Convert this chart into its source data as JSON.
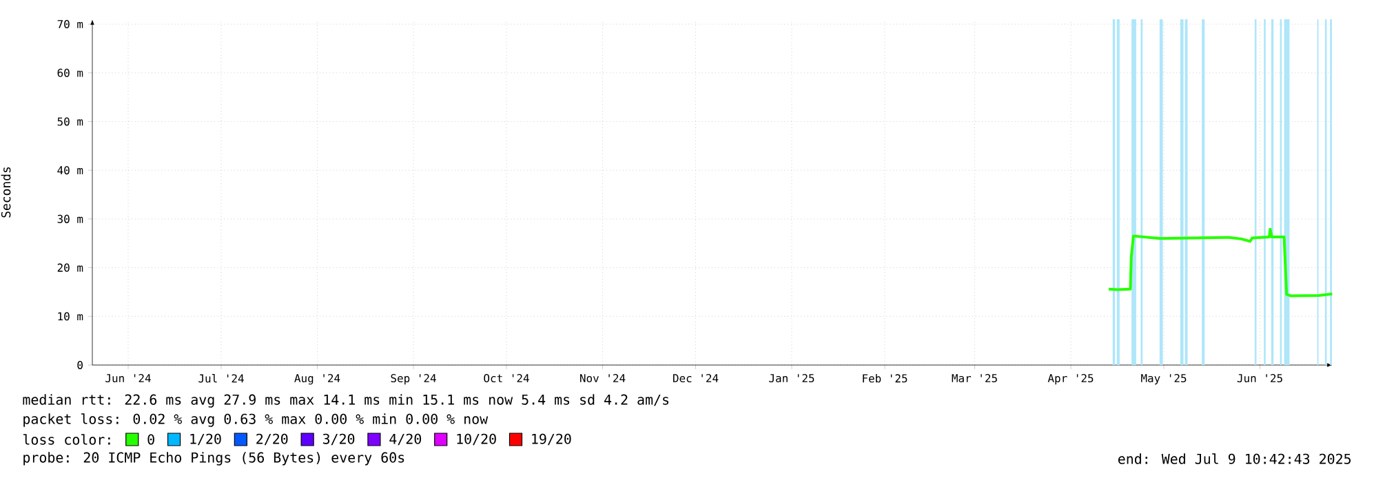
{
  "chart_data": {
    "type": "line",
    "ylabel": "Seconds",
    "legend_title": "loss color:",
    "legend": "bottom",
    "grid": true,
    "xlim": [
      "2024-06-04T10:42",
      "2025-07-09T10:42"
    ],
    "xticks": [
      {
        "value": "2024-06-16",
        "label": "Jun '24"
      },
      {
        "value": "2024-07-16",
        "label": "Jul '24"
      },
      {
        "value": "2024-08-16",
        "label": "Aug '24"
      },
      {
        "value": "2024-09-16",
        "label": "Sep '24"
      },
      {
        "value": "2024-10-16",
        "label": "Oct '24"
      },
      {
        "value": "2024-11-16",
        "label": "Nov '24"
      },
      {
        "value": "2024-12-16",
        "label": "Dec '24"
      },
      {
        "value": "2025-01-16",
        "label": "Jan '25"
      },
      {
        "value": "2025-02-15",
        "label": "Feb '25"
      },
      {
        "value": "2025-03-16",
        "label": "Mar '25"
      },
      {
        "value": "2025-04-16",
        "label": "Apr '25"
      },
      {
        "value": "2025-05-16",
        "label": "May '25"
      },
      {
        "value": "2025-06-16",
        "label": "Jun '25"
      }
    ],
    "ylim": [
      0,
      71
    ],
    "yticks": [
      0,
      {
        "value": 10,
        "label": "10 m"
      },
      {
        "value": 20,
        "label": "20 m"
      },
      {
        "value": 30,
        "label": "30 m"
      },
      {
        "value": 40,
        "label": "40 m"
      },
      {
        "value": 50,
        "label": "50 m"
      },
      {
        "value": 60,
        "label": "60 m"
      },
      {
        "value": 70,
        "label": "70 m"
      }
    ],
    "x": [
      "2025-04-28T05:00",
      "2025-05-01",
      "2025-05-05T05:00",
      "2025-05-05T12:00",
      "2025-05-06T05:00",
      "2025-05-14T19:00",
      "2025-06-06",
      "2025-06-10",
      "2025-06-12T19:00",
      "2025-06-13T12:00",
      "2025-06-19",
      "2025-06-19T07:00",
      "2025-06-19T19:00",
      "2025-06-23T19:00",
      "2025-06-24T14:00",
      "2025-06-26",
      "2025-07-05",
      "2025-07-09T07:00"
    ],
    "series": [
      {
        "name": "0",
        "color": "#26ff00",
        "values": [
          15.6,
          15.5,
          15.6,
          22.2,
          26.5,
          26.0,
          26.2,
          25.9,
          25.4,
          26.1,
          26.3,
          27.9,
          26.3,
          26.3,
          14.5,
          14.2,
          14.3,
          14.6
        ]
      },
      {
        "name": "1/20",
        "color": "#00b8ff",
        "values": [
          null,
          null,
          null,
          null,
          null,
          null,
          null,
          null,
          null,
          null,
          null,
          null,
          null,
          null,
          null,
          null,
          null,
          null
        ]
      },
      {
        "name": "2/20",
        "color": "#0059ff",
        "values": [
          null,
          null,
          null,
          null,
          null,
          null,
          null,
          null,
          null,
          null,
          null,
          null,
          null,
          null,
          null,
          null,
          null,
          null
        ]
      },
      {
        "name": "3/20",
        "color": "#5e00ff",
        "values": [
          null,
          null,
          null,
          null,
          null,
          null,
          null,
          null,
          null,
          null,
          null,
          null,
          null,
          null,
          null,
          null,
          null,
          null
        ]
      },
      {
        "name": "4/20",
        "color": "#7e00ff",
        "values": [
          null,
          null,
          null,
          null,
          null,
          null,
          null,
          null,
          null,
          null,
          null,
          null,
          null,
          null,
          null,
          null,
          null,
          null
        ]
      },
      {
        "name": "10/20",
        "color": "#dd00ff",
        "values": [
          null,
          null,
          null,
          null,
          null,
          null,
          null,
          null,
          null,
          null,
          null,
          null,
          null,
          null,
          null,
          null,
          null,
          null
        ]
      },
      {
        "name": "19/20",
        "color": "#ff0000",
        "values": [
          null,
          null,
          null,
          null,
          null,
          null,
          null,
          null,
          null,
          null,
          null,
          null,
          null,
          null,
          null,
          null,
          null,
          null
        ]
      }
    ],
    "bands": [
      {
        "axis": "x",
        "from": "2025-04-29T12:00",
        "to": "2025-04-30T06:00",
        "color": "#aee6fa"
      },
      {
        "axis": "x",
        "from": "2025-04-30T20:00",
        "to": "2025-05-01T18:00",
        "color": "#aee6fa"
      },
      {
        "axis": "x",
        "from": "2025-05-05T14:00",
        "to": "2025-05-07T02:00",
        "color": "#aee6fa"
      },
      {
        "axis": "x",
        "from": "2025-05-08T13:00",
        "to": "2025-05-09T04:00",
        "color": "#aee6fa"
      },
      {
        "axis": "x",
        "from": "2025-05-14T15:00",
        "to": "2025-05-15T16:00",
        "color": "#aee6fa"
      },
      {
        "axis": "x",
        "from": "2025-05-21T07:00",
        "to": "2025-05-22T08:00",
        "color": "#aee6fa"
      },
      {
        "axis": "x",
        "from": "2025-05-22T19:00",
        "to": "2025-05-23T16:00",
        "color": "#aee6fa"
      },
      {
        "axis": "x",
        "from": "2025-05-28T06:00",
        "to": "2025-05-29T04:00",
        "color": "#aee6fa"
      },
      {
        "axis": "x",
        "from": "2025-06-14T07:00",
        "to": "2025-06-14T21:00",
        "color": "#aee6fa"
      },
      {
        "axis": "x",
        "from": "2025-06-17T06:00",
        "to": "2025-06-17T20:00",
        "color": "#aee6fa"
      },
      {
        "axis": "x",
        "from": "2025-06-19T15:00",
        "to": "2025-06-20T09:00",
        "color": "#aee6fa"
      },
      {
        "axis": "x",
        "from": "2025-06-22T11:00",
        "to": "2025-06-23T01:00",
        "color": "#aee6fa"
      },
      {
        "axis": "x",
        "from": "2025-06-23T19:00",
        "to": "2025-06-25T13:00",
        "color": "#aee6fa"
      },
      {
        "axis": "x",
        "from": "2025-07-04T11:00",
        "to": "2025-07-04T21:00",
        "color": "#aee6fa"
      },
      {
        "axis": "x",
        "from": "2025-07-06T23:00",
        "to": "2025-07-07T13:00",
        "color": "#aee6fa"
      },
      {
        "axis": "x",
        "from": "2025-07-08T14:00",
        "to": "2025-07-09T05:00",
        "color": "#aee6fa"
      }
    ],
    "annotations": [
      "median rtt: 22.6 ms avg 27.9 ms max 14.1 ms min 15.1 ms now 5.4 ms sd 4.2 am/s",
      "packet loss: 0.02 % avg 0.63 % max 0.00 % min 0.00 % now",
      "probe: 20 ICMP Echo Pings (56 Bytes) every 60s",
      "end: Wed Jul 9 10:42:43 2025"
    ]
  }
}
